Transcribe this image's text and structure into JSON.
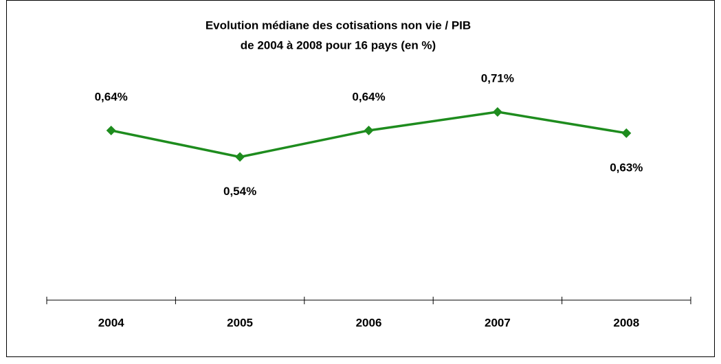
{
  "chart_data": {
    "type": "line",
    "title": "Evolution médiane des cotisations non vie / PIB",
    "subtitle": "de 2004 à 2008 pour 16 pays (en %)",
    "categories": [
      "2004",
      "2005",
      "2006",
      "2007",
      "2008"
    ],
    "series": [
      {
        "name": "Cotisations non vie / PIB",
        "color": "#1e8c1e",
        "values": [
          0.64,
          0.54,
          0.64,
          0.71,
          0.63
        ],
        "value_labels": [
          "0,64%",
          "0,54%",
          "0,64%",
          "0,71%",
          "0,63%"
        ]
      }
    ]
  }
}
